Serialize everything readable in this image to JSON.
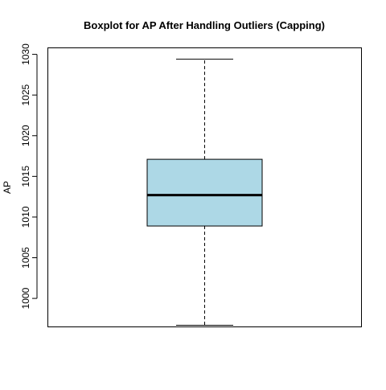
{
  "chart_data": {
    "type": "boxplot",
    "title": "Boxplot for AP After Handling Outliers (Capping)",
    "xlabel": "",
    "ylabel": "AP",
    "ylim": [
      996.5,
      1030.8
    ],
    "yticks": [
      1000,
      1005,
      1010,
      1015,
      1020,
      1025,
      1030
    ],
    "ytick_labels": [
      "1000",
      "1005",
      "1010",
      "1015",
      "1020",
      "1025",
      "1030"
    ],
    "grid": false,
    "series": [
      {
        "whisker_low": 996.7,
        "q1": 1008.9,
        "median": 1012.7,
        "q3": 1017.1,
        "whisker_high": 1029.4
      }
    ],
    "colors": {
      "box_fill": "#add8e6",
      "stroke": "#000000",
      "background": "#ffffff"
    }
  }
}
